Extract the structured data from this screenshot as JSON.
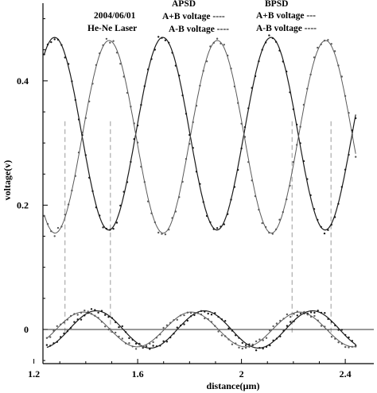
{
  "annotations": {
    "date": "2004/06/01",
    "source": "He-Ne Laser",
    "apsd_title": "APSD",
    "apsd_sum": "A+B voltage ----",
    "apsd_diff": "A-B voltage ----",
    "bpsd_title": "BPSD",
    "bpsd_sum": "A+B voltage ---",
    "bpsd_diff": "A-B voltage ----"
  },
  "colors": {
    "dark": "#1a1a1a",
    "light": "#5a5a5a",
    "guide": "#9a9a9a"
  },
  "chart_data": {
    "type": "line",
    "title": "",
    "xlabel": "distance(µm)",
    "ylabel": "voltage(v)",
    "xlim": [
      1.235,
      2.51
    ],
    "ylim": [
      -0.055,
      0.525
    ],
    "xticks": [
      1.2,
      1.6,
      2,
      2.4
    ],
    "xtick_labels": [
      "1.2",
      "1.6",
      "2",
      "2.4"
    ],
    "yticks": [
      0,
      0.2,
      0.4
    ],
    "ytick_labels": [
      "0",
      "0.2",
      "0.4"
    ],
    "zero_line": true,
    "guide_lines_x": [
      1.32,
      1.495,
      2.195,
      2.345
    ],
    "series": [
      {
        "name": "APSD A+B voltage",
        "style": "dark",
        "mean": 0.315,
        "amp": 0.155,
        "period": 0.417,
        "peak_x": 1.28,
        "x_range": [
          1.24,
          2.44
        ]
      },
      {
        "name": "BPSD A+B voltage",
        "style": "light",
        "mean": 0.31,
        "amp": 0.155,
        "period": 0.417,
        "peak_x": 1.49,
        "x_range": [
          1.24,
          2.44
        ]
      },
      {
        "name": "APSD A-B voltage",
        "style": "dark",
        "mean": 0.0,
        "amp": 0.03,
        "period": 0.417,
        "peak_x": 1.44,
        "x_range": [
          1.25,
          2.44
        ]
      },
      {
        "name": "BPSD A-B voltage",
        "style": "light",
        "mean": 0.0,
        "amp": 0.028,
        "period": 0.417,
        "peak_x": 1.39,
        "x_range": [
          1.25,
          2.44
        ]
      }
    ]
  }
}
